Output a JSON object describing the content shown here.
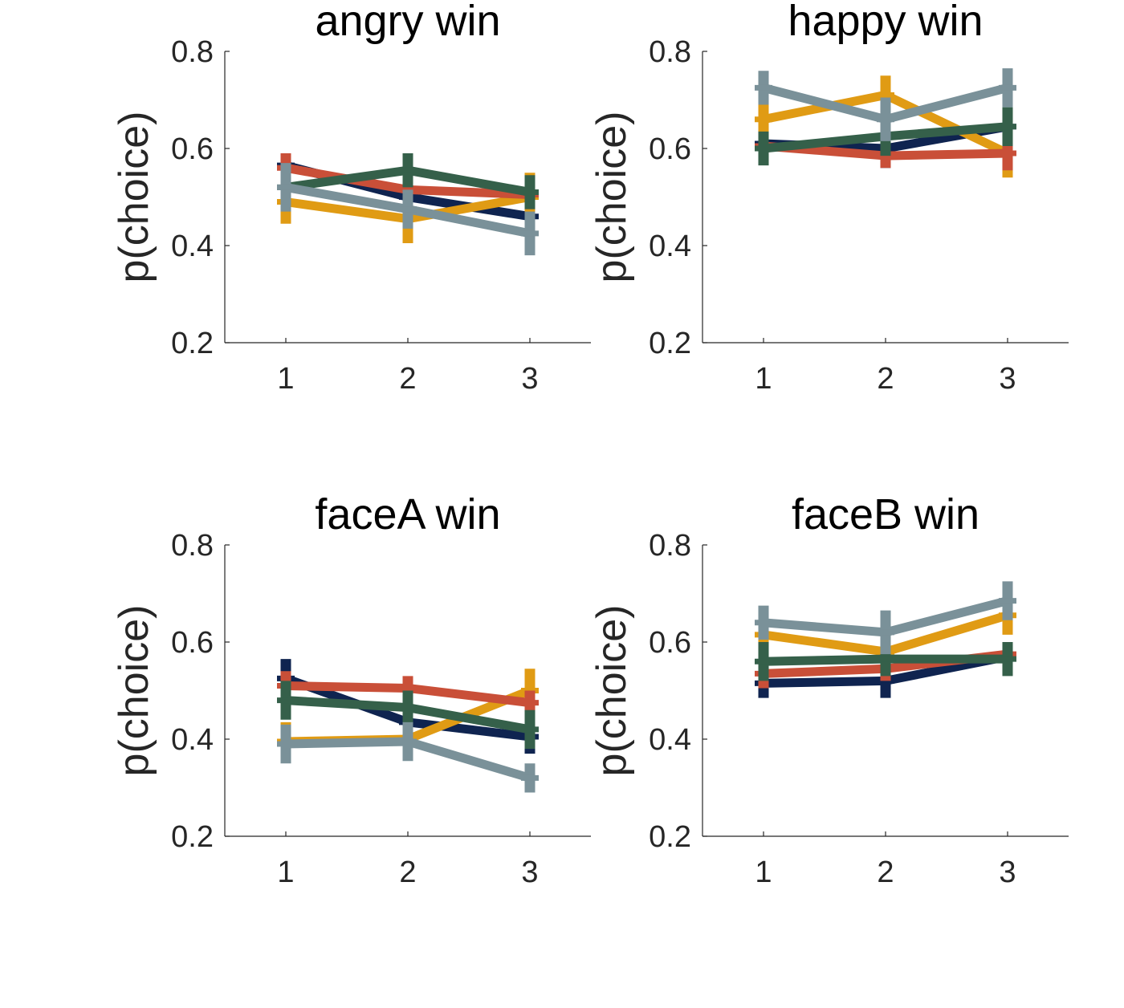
{
  "chart_data": [
    {
      "type": "line",
      "title": "angry win",
      "ylabel": "p(choice)",
      "xlabel": "",
      "categories": [
        "1",
        "2",
        "3"
      ],
      "x": [
        1,
        2,
        3
      ],
      "xlim": [
        0.5,
        3.5
      ],
      "ylim": [
        0.2,
        0.8
      ],
      "yticks": [
        "0.2",
        "0.4",
        "0.6",
        "0.8"
      ],
      "grid": false,
      "series": [
        {
          "color": "#0f2450",
          "values": [
            0.565,
            0.5,
            0.46
          ],
          "err": [
            0.02,
            0.03,
            0.03
          ]
        },
        {
          "color": "#e09b14",
          "values": [
            0.49,
            0.455,
            0.5
          ],
          "err": [
            0.045,
            0.05,
            0.05
          ]
        },
        {
          "color": "#c94f38",
          "values": [
            0.56,
            0.515,
            0.505
          ],
          "err": [
            0.03,
            0.025,
            0.03
          ]
        },
        {
          "color": "#35604a",
          "values": [
            0.52,
            0.555,
            0.51
          ],
          "err": [
            0.03,
            0.035,
            0.035
          ]
        },
        {
          "color": "#7a9199",
          "values": [
            0.52,
            0.475,
            0.425
          ],
          "err": [
            0.05,
            0.04,
            0.045
          ]
        }
      ]
    },
    {
      "type": "line",
      "title": "happy win",
      "ylabel": "p(choice)",
      "xlabel": "",
      "categories": [
        "1",
        "2",
        "3"
      ],
      "x": [
        1,
        2,
        3
      ],
      "xlim": [
        0.5,
        3.5
      ],
      "ylim": [
        0.2,
        0.8
      ],
      "yticks": [
        "0.2",
        "0.4",
        "0.6",
        "0.8"
      ],
      "grid": false,
      "series": [
        {
          "color": "#0f2450",
          "values": [
            0.61,
            0.6,
            0.645
          ],
          "err": [
            0.03,
            0.04,
            0.03
          ]
        },
        {
          "color": "#e09b14",
          "values": [
            0.66,
            0.71,
            0.59
          ],
          "err": [
            0.05,
            0.04,
            0.05
          ]
        },
        {
          "color": "#c94f38",
          "values": [
            0.605,
            0.585,
            0.59
          ],
          "err": [
            0.025,
            0.025,
            0.035
          ]
        },
        {
          "color": "#35604a",
          "values": [
            0.6,
            0.625,
            0.645
          ],
          "err": [
            0.035,
            0.04,
            0.04
          ]
        },
        {
          "color": "#7a9199",
          "values": [
            0.725,
            0.66,
            0.725
          ],
          "err": [
            0.035,
            0.045,
            0.04
          ]
        }
      ]
    },
    {
      "type": "line",
      "title": "faceA win",
      "ylabel": "p(choice)",
      "xlabel": "",
      "categories": [
        "1",
        "2",
        "3"
      ],
      "x": [
        1,
        2,
        3
      ],
      "xlim": [
        0.5,
        3.5
      ],
      "ylim": [
        0.2,
        0.8
      ],
      "yticks": [
        "0.2",
        "0.4",
        "0.6",
        "0.8"
      ],
      "grid": false,
      "series": [
        {
          "color": "#0f2450",
          "values": [
            0.525,
            0.435,
            0.405
          ],
          "err": [
            0.04,
            0.03,
            0.035
          ]
        },
        {
          "color": "#e09b14",
          "values": [
            0.395,
            0.4,
            0.5
          ],
          "err": [
            0.04,
            0.04,
            0.045
          ]
        },
        {
          "color": "#c94f38",
          "values": [
            0.51,
            0.505,
            0.475
          ],
          "err": [
            0.03,
            0.025,
            0.025
          ]
        },
        {
          "color": "#35604a",
          "values": [
            0.48,
            0.465,
            0.42
          ],
          "err": [
            0.04,
            0.035,
            0.04
          ]
        },
        {
          "color": "#7a9199",
          "values": [
            0.39,
            0.395,
            0.32
          ],
          "err": [
            0.04,
            0.04,
            0.03
          ]
        }
      ]
    },
    {
      "type": "line",
      "title": "faceB win",
      "ylabel": "p(choice)",
      "xlabel": "",
      "categories": [
        "1",
        "2",
        "3"
      ],
      "x": [
        1,
        2,
        3
      ],
      "xlim": [
        0.5,
        3.5
      ],
      "ylim": [
        0.2,
        0.8
      ],
      "yticks": [
        "0.2",
        "0.4",
        "0.6",
        "0.8"
      ],
      "grid": false,
      "series": [
        {
          "color": "#0f2450",
          "values": [
            0.515,
            0.52,
            0.57
          ],
          "err": [
            0.03,
            0.035,
            0.03
          ]
        },
        {
          "color": "#e09b14",
          "values": [
            0.615,
            0.58,
            0.655
          ],
          "err": [
            0.04,
            0.035,
            0.04
          ]
        },
        {
          "color": "#c94f38",
          "values": [
            0.535,
            0.545,
            0.575
          ],
          "err": [
            0.03,
            0.025,
            0.025
          ]
        },
        {
          "color": "#35604a",
          "values": [
            0.56,
            0.565,
            0.565
          ],
          "err": [
            0.04,
            0.035,
            0.035
          ]
        },
        {
          "color": "#7a9199",
          "values": [
            0.64,
            0.62,
            0.685
          ],
          "err": [
            0.035,
            0.045,
            0.04
          ]
        }
      ]
    }
  ]
}
